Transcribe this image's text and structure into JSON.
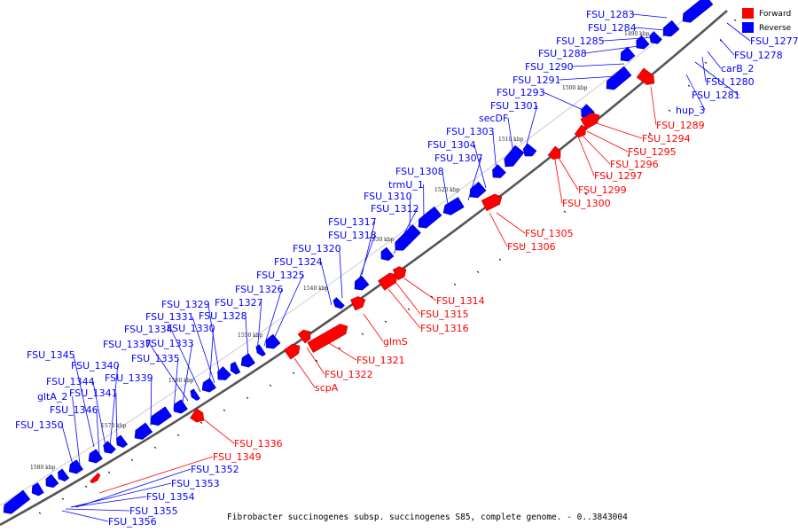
{
  "caption": "Fibrobacter succinogenes subsp. succinogenes S85, complete genome. - 0..3843004",
  "legend": [
    {
      "label": "Forward",
      "color": "#ff0000"
    },
    {
      "label": "Reverse",
      "color": "#0000ff"
    }
  ],
  "colors": {
    "forward": "#ff0000",
    "reverse": "#0000ff",
    "backbone": "#555555"
  },
  "ticks": [
    "1490 kbp",
    "1500 kbp",
    "1510 kbp",
    "1520 kbp",
    "1530 kbp",
    "1540 kbp",
    "1550 kbp",
    "1560 kbp",
    "1570 kbp",
    "1580 kbp"
  ],
  "labels": {
    "reverse": [
      "FSU_1283",
      "FSU_1284",
      "FSU_1285",
      "FSU_1288",
      "FSU_1290",
      "FSU_1291",
      "FSU_1293",
      "FSU_1301",
      "secDF",
      "FSU_1303",
      "FSU_1304",
      "FSU_1307",
      "FSU_1308",
      "trmU_1",
      "FSU_1310",
      "FSU_1312",
      "FSU_1317",
      "FSU_1318",
      "FSU_1320",
      "FSU_1324",
      "FSU_1325",
      "FSU_1326",
      "FSU_1327",
      "FSU_1328",
      "FSU_1329",
      "FSU_1331",
      "FSU_1330",
      "FSU_1334",
      "FSU_1337",
      "FSU_1333",
      "FSU_1335",
      "FSU_1345",
      "FSU_1340",
      "FSU_1339",
      "FSU_1344",
      "gltA_2",
      "FSU_1341",
      "FSU_1346",
      "FSU_1350",
      "FSU_1352",
      "FSU_1353",
      "FSU_1354",
      "FSU_1355",
      "FSU_1356",
      "FSU_1277",
      "FSU_1278",
      "carB_2",
      "FSU_1280",
      "FSU_1281",
      "hup_3"
    ],
    "forward": [
      "FSU_1289",
      "FSU_1294",
      "FSU_1295",
      "FSU_1296",
      "FSU_1297",
      "FSU_1299",
      "FSU_1300",
      "FSU_1305",
      "FSU_1306",
      "FSU_1314",
      "FSU_1315",
      "FSU_1316",
      "glmS",
      "FSU_1321",
      "FSU_1322",
      "scpA",
      "FSU_1336",
      "FSU_1349"
    ]
  }
}
